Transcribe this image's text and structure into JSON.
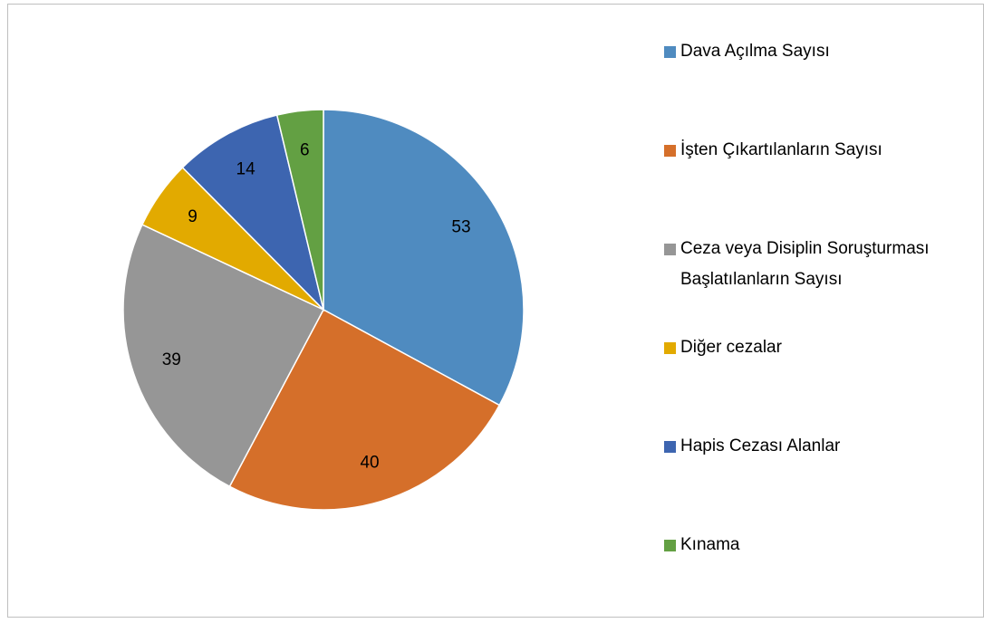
{
  "chart_data": {
    "type": "pie",
    "categories": [
      "Dava Açılma Sayısı",
      "İşten Çıkartılanların Sayısı",
      "Ceza veya Disiplin Soruşturması Başlatılanların Sayısı",
      "Diğer cezalar",
      "Hapis Cezası Alanlar",
      "Kınama"
    ],
    "values": [
      53,
      40,
      39,
      9,
      14,
      6
    ],
    "colors": [
      "#4f8bc0",
      "#d56f2a",
      "#969696",
      "#e2aa00",
      "#3d65b0",
      "#63a043"
    ],
    "legend": "right"
  }
}
